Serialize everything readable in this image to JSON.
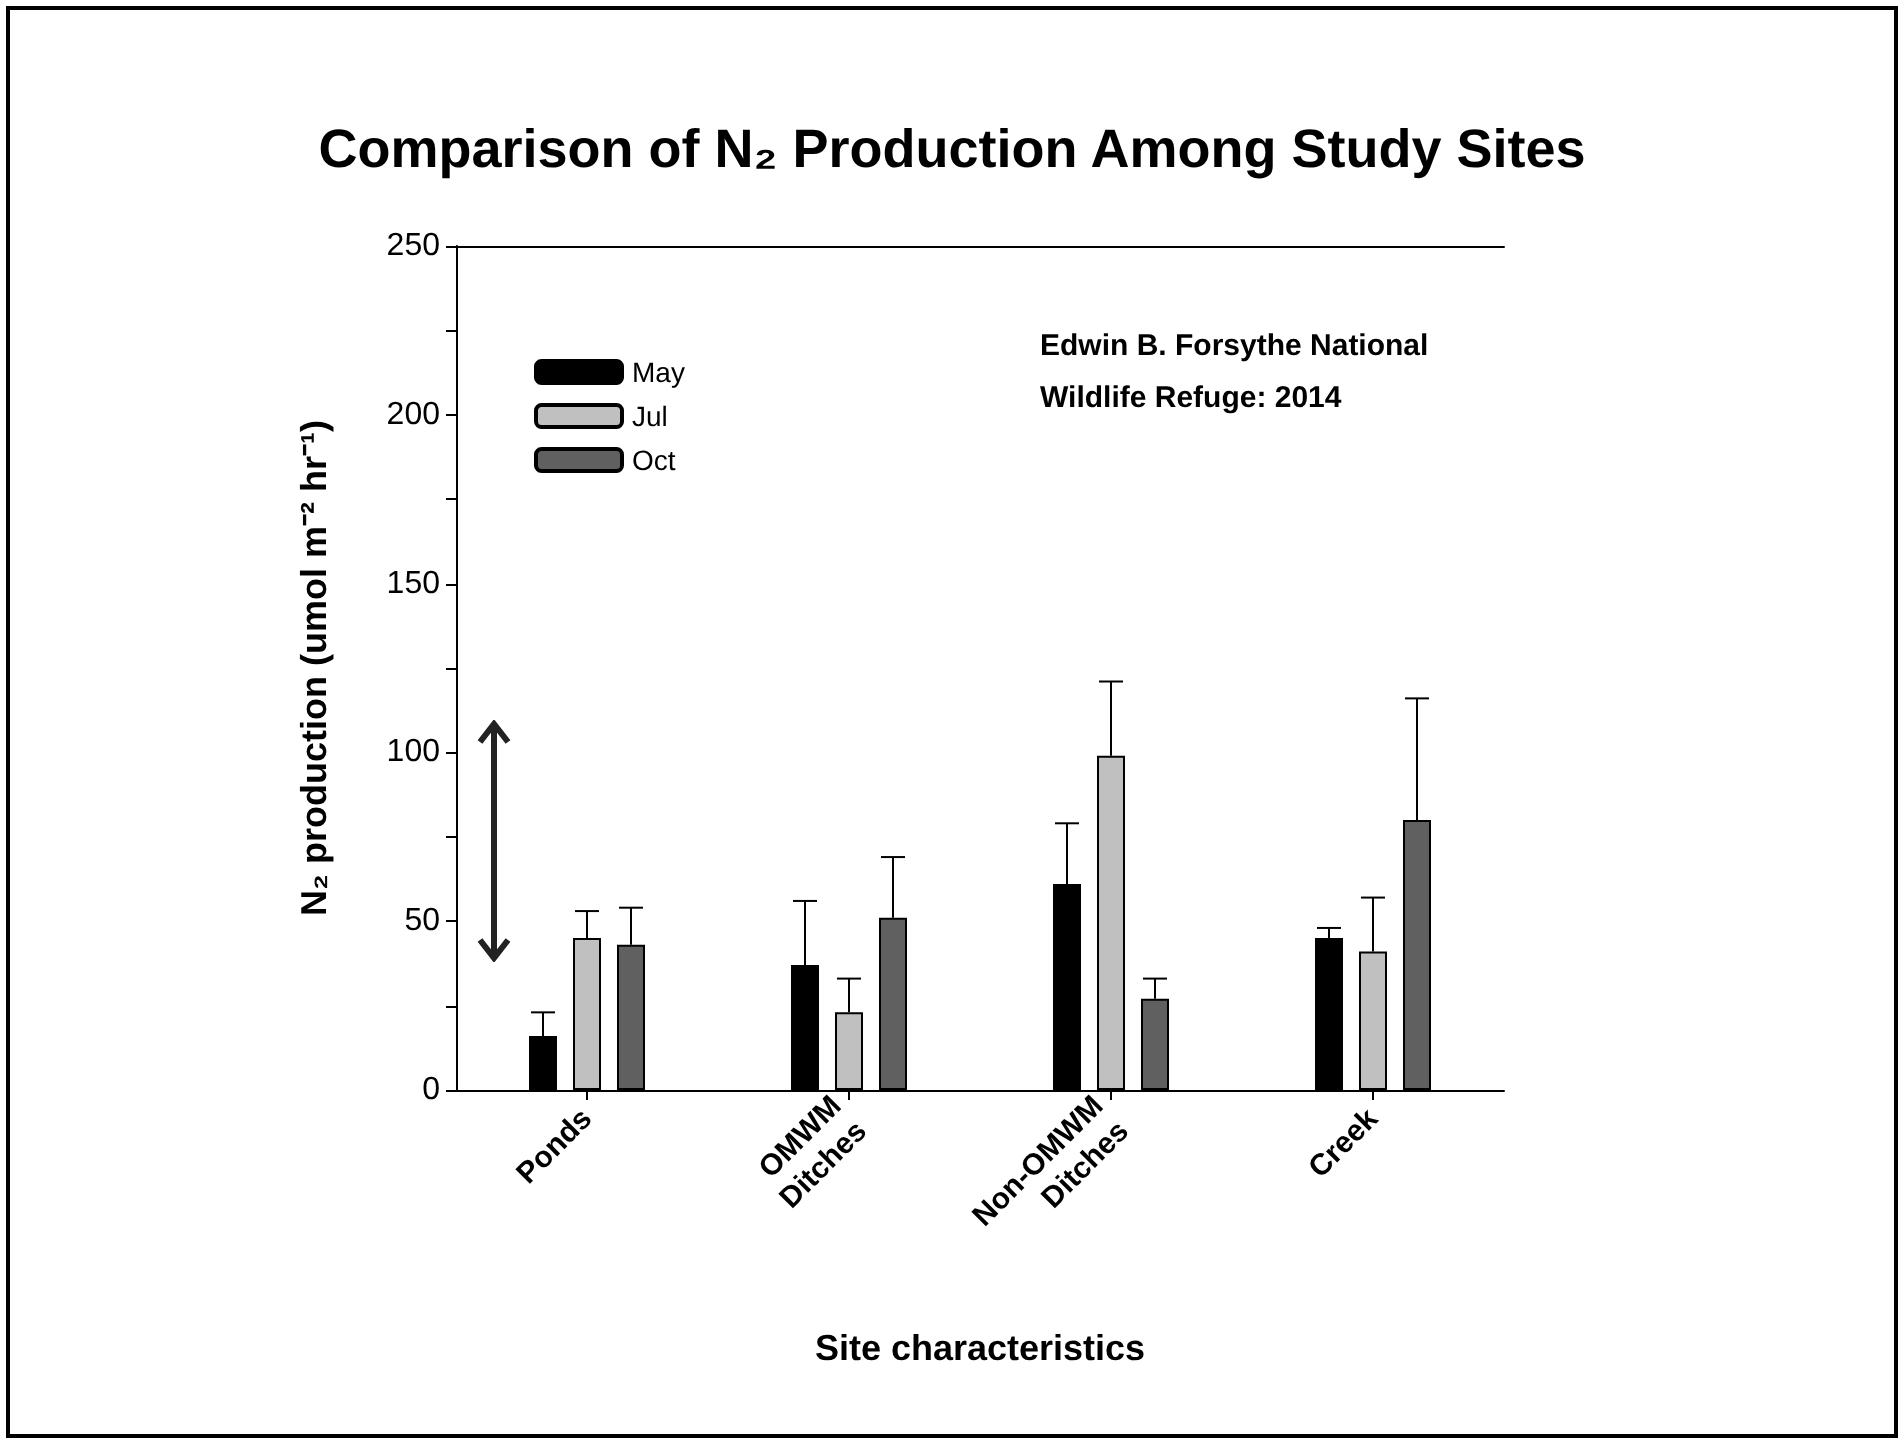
{
  "chart_data": {
    "type": "bar",
    "title": "Comparison of N₂ Production Among Study Sites",
    "xlabel": "Site characteristics",
    "ylabel": "N₂ production (umol m⁻² hr⁻¹)",
    "annotations": [
      "Edwin B. Forsythe National\nWildlife Refuge: 2014"
    ],
    "categories": [
      "Ponds",
      "OMWM\nDitches",
      "Non-OMWM\nDitches",
      "Creek"
    ],
    "series": [
      {
        "name": "May",
        "color": "#000000",
        "values": [
          16,
          37,
          61,
          45
        ],
        "errors": [
          [
            16,
            23
          ],
          [
            37,
            56
          ],
          [
            61,
            79
          ],
          [
            45,
            48
          ]
        ]
      },
      {
        "name": "Jul",
        "color": "#c0c0c0",
        "values": [
          45,
          23,
          99,
          41
        ],
        "errors": [
          [
            45,
            53
          ],
          [
            23,
            33
          ],
          [
            99,
            121
          ],
          [
            41,
            57
          ]
        ]
      },
      {
        "name": "Oct",
        "color": "#606060",
        "values": [
          43,
          51,
          27,
          80
        ],
        "errors": [
          [
            43,
            54
          ],
          [
            51,
            69
          ],
          [
            27,
            33
          ],
          [
            80,
            116
          ]
        ]
      }
    ],
    "ylim": [
      0,
      250
    ],
    "yticks": [
      0,
      50,
      100,
      150,
      200,
      250
    ],
    "grid": false,
    "legend": "top left"
  }
}
